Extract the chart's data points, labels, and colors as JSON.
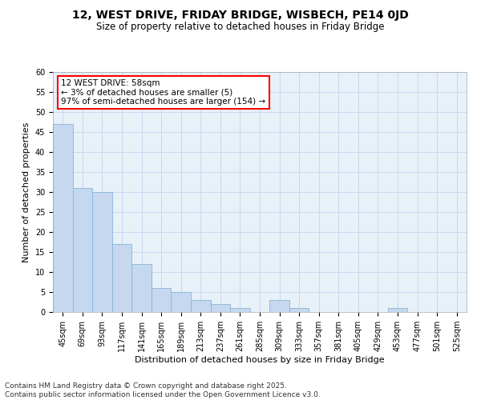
{
  "title1": "12, WEST DRIVE, FRIDAY BRIDGE, WISBECH, PE14 0JD",
  "title2": "Size of property relative to detached houses in Friday Bridge",
  "xlabel": "Distribution of detached houses by size in Friday Bridge",
  "ylabel": "Number of detached properties",
  "categories": [
    "45sqm",
    "69sqm",
    "93sqm",
    "117sqm",
    "141sqm",
    "165sqm",
    "189sqm",
    "213sqm",
    "237sqm",
    "261sqm",
    "285sqm",
    "309sqm",
    "333sqm",
    "357sqm",
    "381sqm",
    "405sqm",
    "429sqm",
    "453sqm",
    "477sqm",
    "501sqm",
    "525sqm"
  ],
  "values": [
    47,
    31,
    30,
    17,
    12,
    6,
    5,
    3,
    2,
    1,
    0,
    3,
    1,
    0,
    0,
    0,
    0,
    1,
    0,
    0,
    0
  ],
  "bar_color": "#c5d8f0",
  "bar_edge_color": "#8ab4d8",
  "highlight_color": "#ff0000",
  "annotation_text": "12 WEST DRIVE: 58sqm\n← 3% of detached houses are smaller (5)\n97% of semi-detached houses are larger (154) →",
  "annotation_box_color": "#ffffff",
  "annotation_box_edge": "#ff0000",
  "ylim": [
    0,
    60
  ],
  "yticks": [
    0,
    5,
    10,
    15,
    20,
    25,
    30,
    35,
    40,
    45,
    50,
    55,
    60
  ],
  "grid_color": "#c8d8ee",
  "background_color": "#e8f0f8",
  "footnote": "Contains HM Land Registry data © Crown copyright and database right 2025.\nContains public sector information licensed under the Open Government Licence v3.0.",
  "title1_fontsize": 10,
  "title2_fontsize": 8.5,
  "xlabel_fontsize": 8,
  "ylabel_fontsize": 8,
  "tick_fontsize": 7,
  "annotation_fontsize": 7.5,
  "footnote_fontsize": 6.5
}
